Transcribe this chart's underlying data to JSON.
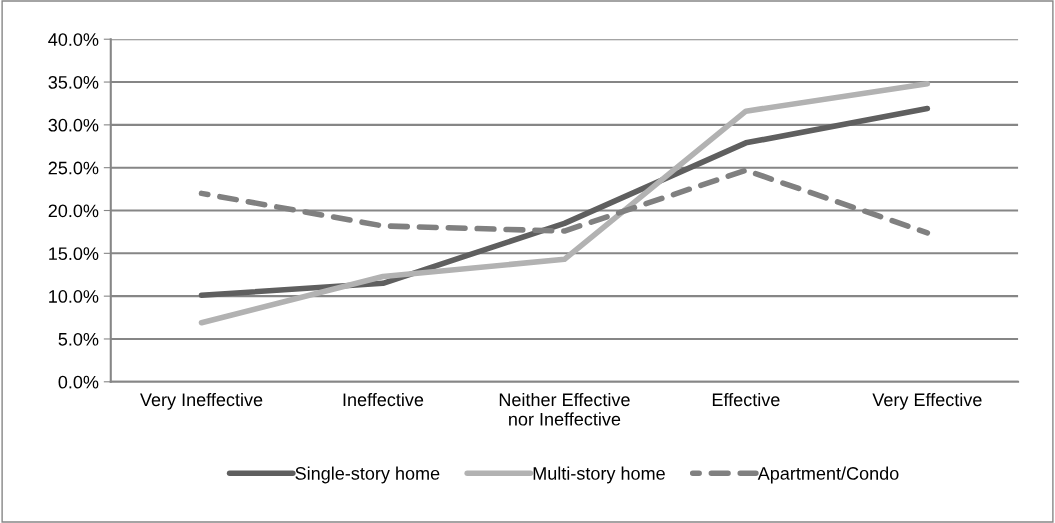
{
  "chart_data": {
    "type": "line",
    "categories": [
      "Very Ineffective",
      "Ineffective",
      "Neither Effective\nnor Ineffective",
      "Effective",
      "Very Effective"
    ],
    "series": [
      {
        "name": "Single-story home",
        "color": "#5f5f5f",
        "line_style": "solid",
        "values": [
          10.1,
          11.5,
          18.5,
          27.9,
          31.9
        ]
      },
      {
        "name": "Multi-story home",
        "color": "#b2b2b2",
        "line_style": "solid",
        "values": [
          6.9,
          12.3,
          14.3,
          31.6,
          34.8
        ]
      },
      {
        "name": "Apartment/Condo",
        "color": "#808080",
        "line_style": "dashed",
        "values": [
          22.0,
          18.2,
          17.6,
          24.7,
          17.4
        ]
      }
    ],
    "ylim": [
      0,
      40
    ],
    "yticks": [
      {
        "value": 0,
        "label": "0.0%"
      },
      {
        "value": 5,
        "label": "5.0%"
      },
      {
        "value": 10,
        "label": "10.0%"
      },
      {
        "value": 15,
        "label": "15.0%"
      },
      {
        "value": 20,
        "label": "20.0%"
      },
      {
        "value": 25,
        "label": "25.0%"
      },
      {
        "value": 30,
        "label": "30.0%"
      },
      {
        "value": 35,
        "label": "35.0%"
      },
      {
        "value": 40,
        "label": "40.0%"
      }
    ],
    "grid": "y",
    "legend": "bottom",
    "marker": "none"
  }
}
